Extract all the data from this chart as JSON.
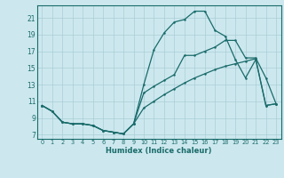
{
  "xlabel": "Humidex (Indice chaleur)",
  "xlim": [
    -0.5,
    23.5
  ],
  "ylim": [
    6.5,
    22.5
  ],
  "yticks": [
    7,
    9,
    11,
    13,
    15,
    17,
    19,
    21
  ],
  "xticks": [
    0,
    1,
    2,
    3,
    4,
    5,
    6,
    7,
    8,
    9,
    10,
    11,
    12,
    13,
    14,
    15,
    16,
    17,
    18,
    19,
    20,
    21,
    22,
    23
  ],
  "bg_color": "#cce8ee",
  "grid_color": "#aacdd6",
  "line_color": "#1a6b6b",
  "line1_x": [
    0,
    1,
    2,
    3,
    4,
    5,
    6,
    7,
    8,
    9,
    10,
    11,
    12,
    13,
    14,
    15,
    16,
    17,
    18,
    19,
    20,
    21,
    22,
    23
  ],
  "line1_y": [
    10.5,
    9.8,
    8.5,
    8.3,
    8.3,
    8.1,
    7.5,
    7.3,
    7.1,
    8.3,
    13.0,
    17.2,
    19.2,
    20.5,
    20.8,
    21.8,
    21.8,
    19.5,
    18.8,
    16.0,
    13.8,
    16.0,
    10.5,
    10.7
  ],
  "line2_x": [
    0,
    1,
    2,
    3,
    4,
    5,
    6,
    7,
    8,
    9,
    10,
    11,
    12,
    13,
    14,
    15,
    16,
    17,
    18,
    19,
    20,
    21,
    22,
    23
  ],
  "line2_y": [
    10.5,
    9.8,
    8.5,
    8.3,
    8.3,
    8.1,
    7.5,
    7.3,
    7.1,
    8.3,
    10.2,
    11.0,
    11.8,
    12.5,
    13.2,
    13.8,
    14.3,
    14.8,
    15.2,
    15.5,
    15.8,
    16.1,
    10.5,
    10.7
  ],
  "line3_x": [
    0,
    1,
    2,
    3,
    4,
    5,
    6,
    7,
    8,
    9,
    10,
    11,
    12,
    13,
    14,
    15,
    16,
    17,
    18,
    19,
    20,
    21,
    22,
    23
  ],
  "line3_y": [
    10.5,
    9.8,
    8.5,
    8.3,
    8.3,
    8.1,
    7.5,
    7.3,
    7.1,
    8.3,
    12.0,
    12.8,
    13.5,
    14.2,
    16.5,
    16.5,
    17.0,
    17.5,
    18.3,
    18.3,
    16.2,
    16.2,
    13.8,
    10.7
  ]
}
